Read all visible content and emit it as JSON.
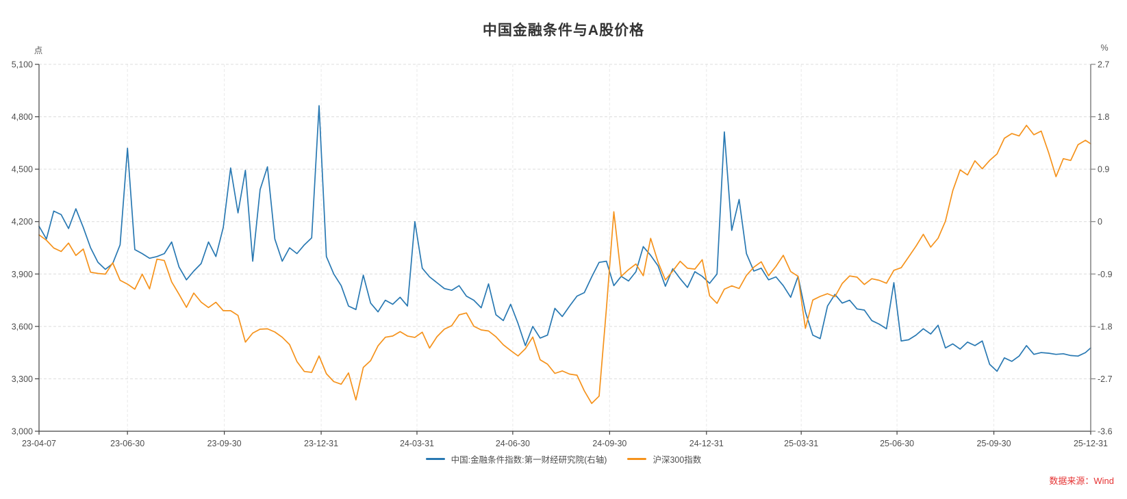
{
  "title": "中国金融条件与A股价格",
  "source_label": "数据来源：Wind",
  "colors": {
    "fci_blue": "#2878b2",
    "csi300_orange": "#f5921b",
    "source_red": "#e53333",
    "grid": "#dcdcdc",
    "grid_light": "#e9e9e9",
    "axis_dark": "#404040",
    "axis_gray": "#808080",
    "text": "#4d4d4d"
  },
  "legend": {
    "items": [
      {
        "id": "fci",
        "label": "中国:金融条件指数:第一财经研究院(右轴)"
      },
      {
        "id": "csi300",
        "label": "沪深300指数"
      }
    ]
  },
  "chart_data": {
    "type": "line",
    "title": "中国金融条件与A股价格",
    "grid": "dashed-horizontal-and-vertical",
    "legend_position": "bottom-center",
    "left_axis": {
      "unit": "点",
      "min": 3000,
      "max": 5100,
      "ticks": [
        {
          "value": 3000,
          "label": "3,000"
        },
        {
          "value": 3300,
          "label": "3,300"
        },
        {
          "value": 3600,
          "label": "3,600"
        },
        {
          "value": 3900,
          "label": "3,900"
        },
        {
          "value": 4200,
          "label": "4,200"
        },
        {
          "value": 4500,
          "label": "4,500"
        },
        {
          "value": 4800,
          "label": "4,800"
        },
        {
          "value": 5100,
          "label": "5,100"
        }
      ]
    },
    "right_axis": {
      "unit": "%",
      "min": -3.6,
      "max": 2.7,
      "ticks": [
        {
          "value": -3.6,
          "label": "-3.6"
        },
        {
          "value": -2.7,
          "label": "-2.7"
        },
        {
          "value": -1.8,
          "label": "-1.8"
        },
        {
          "value": -0.9,
          "label": "-0.9"
        },
        {
          "value": 0,
          "label": "0"
        },
        {
          "value": 0.9,
          "label": "0.9"
        },
        {
          "value": 1.8,
          "label": "1.8"
        },
        {
          "value": 2.7,
          "label": "2.7"
        }
      ]
    },
    "x_axis": {
      "tick_dates": [
        "2023-04-07",
        "2023-06-30",
        "2023-09-30",
        "2023-12-31",
        "2024-03-31",
        "2024-06-30",
        "2024-09-30",
        "2024-12-31",
        "2025-03-31",
        "2025-06-30",
        "2025-09-30",
        "2025-12-31"
      ],
      "tick_labels": [
        "23-04-07",
        "23-06-30",
        "23-09-30",
        "23-12-31",
        "24-03-31",
        "24-06-30",
        "24-09-30",
        "24-12-31",
        "25-03-31",
        "25-06-30",
        "25-09-30",
        "25-12-31"
      ]
    },
    "x_dates": [
      "2023-04-07",
      "2023-04-14",
      "2023-04-21",
      "2023-04-28",
      "2023-05-05",
      "2023-05-12",
      "2023-05-19",
      "2023-05-26",
      "2023-06-02",
      "2023-06-09",
      "2023-06-16",
      "2023-06-23",
      "2023-06-30",
      "2023-07-07",
      "2023-07-14",
      "2023-07-21",
      "2023-07-28",
      "2023-08-04",
      "2023-08-11",
      "2023-08-18",
      "2023-08-25",
      "2023-09-01",
      "2023-09-08",
      "2023-09-15",
      "2023-09-22",
      "2023-09-29",
      "2023-10-06",
      "2023-10-13",
      "2023-10-20",
      "2023-10-27",
      "2023-11-03",
      "2023-11-10",
      "2023-11-17",
      "2023-11-24",
      "2023-12-01",
      "2023-12-08",
      "2023-12-15",
      "2023-12-22",
      "2023-12-29",
      "2024-01-05",
      "2024-01-12",
      "2024-01-19",
      "2024-01-26",
      "2024-02-02",
      "2024-02-09",
      "2024-02-16",
      "2024-02-23",
      "2024-03-01",
      "2024-03-08",
      "2024-03-15",
      "2024-03-22",
      "2024-03-29",
      "2024-04-05",
      "2024-04-12",
      "2024-04-19",
      "2024-04-26",
      "2024-05-03",
      "2024-05-10",
      "2024-05-17",
      "2024-05-24",
      "2024-05-31",
      "2024-06-07",
      "2024-06-14",
      "2024-06-21",
      "2024-06-28",
      "2024-07-05",
      "2024-07-12",
      "2024-07-19",
      "2024-07-26",
      "2024-08-02",
      "2024-08-09",
      "2024-08-16",
      "2024-08-23",
      "2024-08-30",
      "2024-09-06",
      "2024-09-13",
      "2024-09-20",
      "2024-09-27",
      "2024-10-04",
      "2024-10-11",
      "2024-10-18",
      "2024-10-25",
      "2024-11-01",
      "2024-11-08",
      "2024-11-15",
      "2024-11-22",
      "2024-11-29",
      "2024-12-06",
      "2024-12-13",
      "2024-12-20",
      "2024-12-27",
      "2025-01-03",
      "2025-01-10",
      "2025-01-17",
      "2025-01-24",
      "2025-01-31",
      "2025-02-07",
      "2025-02-14",
      "2025-02-21",
      "2025-02-28",
      "2025-03-07",
      "2025-03-14",
      "2025-03-21",
      "2025-03-28",
      "2025-04-04",
      "2025-04-11",
      "2025-04-18",
      "2025-04-25",
      "2025-05-02",
      "2025-05-09",
      "2025-05-16",
      "2025-05-23",
      "2025-05-30",
      "2025-06-06",
      "2025-06-13",
      "2025-06-20",
      "2025-06-27",
      "2025-07-04",
      "2025-07-11",
      "2025-07-18",
      "2025-07-25",
      "2025-08-01",
      "2025-08-08",
      "2025-08-15",
      "2025-08-22",
      "2025-08-29",
      "2025-09-05",
      "2025-09-12",
      "2025-09-19",
      "2025-09-26",
      "2025-10-03",
      "2025-10-10",
      "2025-10-17",
      "2025-10-24",
      "2025-10-31",
      "2025-11-07",
      "2025-11-14",
      "2025-11-21",
      "2025-11-28",
      "2025-12-05",
      "2025-12-12",
      "2025-12-19",
      "2025-12-26",
      "2025-12-31"
    ],
    "series": [
      {
        "id": "fci",
        "name": "中国:金融条件指数:第一财经研究院(右轴)",
        "axis": "right",
        "color": "#2878b2",
        "values": [
          -0.08,
          -0.3,
          0.18,
          0.12,
          -0.12,
          0.22,
          -0.1,
          -0.45,
          -0.7,
          -0.82,
          -0.72,
          -0.4,
          1.26,
          -0.48,
          -0.55,
          -0.63,
          -0.6,
          -0.55,
          -0.35,
          -0.78,
          -1.0,
          -0.85,
          -0.72,
          -0.35,
          -0.6,
          -0.1,
          0.92,
          0.15,
          0.88,
          -0.68,
          0.55,
          0.94,
          -0.3,
          -0.68,
          -0.45,
          -0.55,
          -0.4,
          -0.28,
          1.99,
          -0.6,
          -0.9,
          -1.1,
          -1.45,
          -1.51,
          -0.92,
          -1.4,
          -1.55,
          -1.35,
          -1.42,
          -1.3,
          -1.45,
          0.0,
          -0.8,
          -0.95,
          -1.05,
          -1.15,
          -1.18,
          -1.1,
          -1.28,
          -1.35,
          -1.48,
          -1.07,
          -1.6,
          -1.7,
          -1.42,
          -1.75,
          -2.13,
          -1.8,
          -2.0,
          -1.95,
          -1.49,
          -1.63,
          -1.45,
          -1.28,
          -1.22,
          -0.95,
          -0.7,
          -0.68,
          -1.1,
          -0.94,
          -1.02,
          -0.86,
          -0.43,
          -0.58,
          -0.76,
          -1.11,
          -0.81,
          -0.98,
          -1.13,
          -0.86,
          -0.94,
          -1.06,
          -0.9,
          1.54,
          -0.15,
          0.38,
          -0.55,
          -0.85,
          -0.8,
          -1.0,
          -0.95,
          -1.1,
          -1.3,
          -0.94,
          -1.55,
          -1.95,
          -2.01,
          -1.45,
          -1.25,
          -1.4,
          -1.35,
          -1.5,
          -1.52,
          -1.7,
          -1.76,
          -1.84,
          -1.05,
          -2.05,
          -2.03,
          -1.95,
          -1.84,
          -1.93,
          -1.78,
          -2.17,
          -2.1,
          -2.19,
          -2.07,
          -2.13,
          -2.05,
          -2.45,
          -2.57,
          -2.34,
          -2.4,
          -2.31,
          -2.13,
          -2.28,
          -2.25,
          -2.26,
          -2.28,
          -2.27,
          -2.3,
          -2.31,
          -2.25,
          -2.17
        ]
      },
      {
        "id": "csi300",
        "name": "沪深300指数",
        "axis": "left",
        "color": "#f5921b",
        "values": [
          4124,
          4093,
          4049,
          4029,
          4077,
          4006,
          4043,
          3910,
          3903,
          3899,
          3964,
          3864,
          3842,
          3813,
          3899,
          3815,
          3985,
          3977,
          3855,
          3784,
          3709,
          3791,
          3739,
          3708,
          3738,
          3690,
          3690,
          3663,
          3510,
          3562,
          3584,
          3586,
          3568,
          3538,
          3496,
          3399,
          3342,
          3337,
          3431,
          3329,
          3284,
          3269,
          3334,
          3179,
          3365,
          3404,
          3489,
          3538,
          3545,
          3570,
          3545,
          3537,
          3567,
          3476,
          3541,
          3584,
          3604,
          3666,
          3677,
          3601,
          3580,
          3574,
          3541,
          3495,
          3462,
          3431,
          3472,
          3539,
          3409,
          3384,
          3331,
          3345,
          3327,
          3321,
          3231,
          3159,
          3201,
          3704,
          4256,
          3887,
          3925,
          3957,
          3890,
          4104,
          3968,
          3866,
          3917,
          3973,
          3933,
          3928,
          3982,
          3775,
          3732,
          3813,
          3832,
          3817,
          3892,
          3939,
          3970,
          3890,
          3944,
          4007,
          3914,
          3887,
          3589,
          3751,
          3772,
          3787,
          3770,
          3846,
          3889,
          3882,
          3840,
          3873,
          3864,
          3847,
          3921,
          3936,
          3997,
          4059,
          4127,
          4054,
          4105,
          4202,
          4378,
          4496,
          4467,
          4548,
          4502,
          4550,
          4587,
          4677,
          4704,
          4690,
          4751,
          4697,
          4718,
          4595,
          4457,
          4560,
          4550,
          4640,
          4665,
          4645
        ]
      }
    ]
  }
}
